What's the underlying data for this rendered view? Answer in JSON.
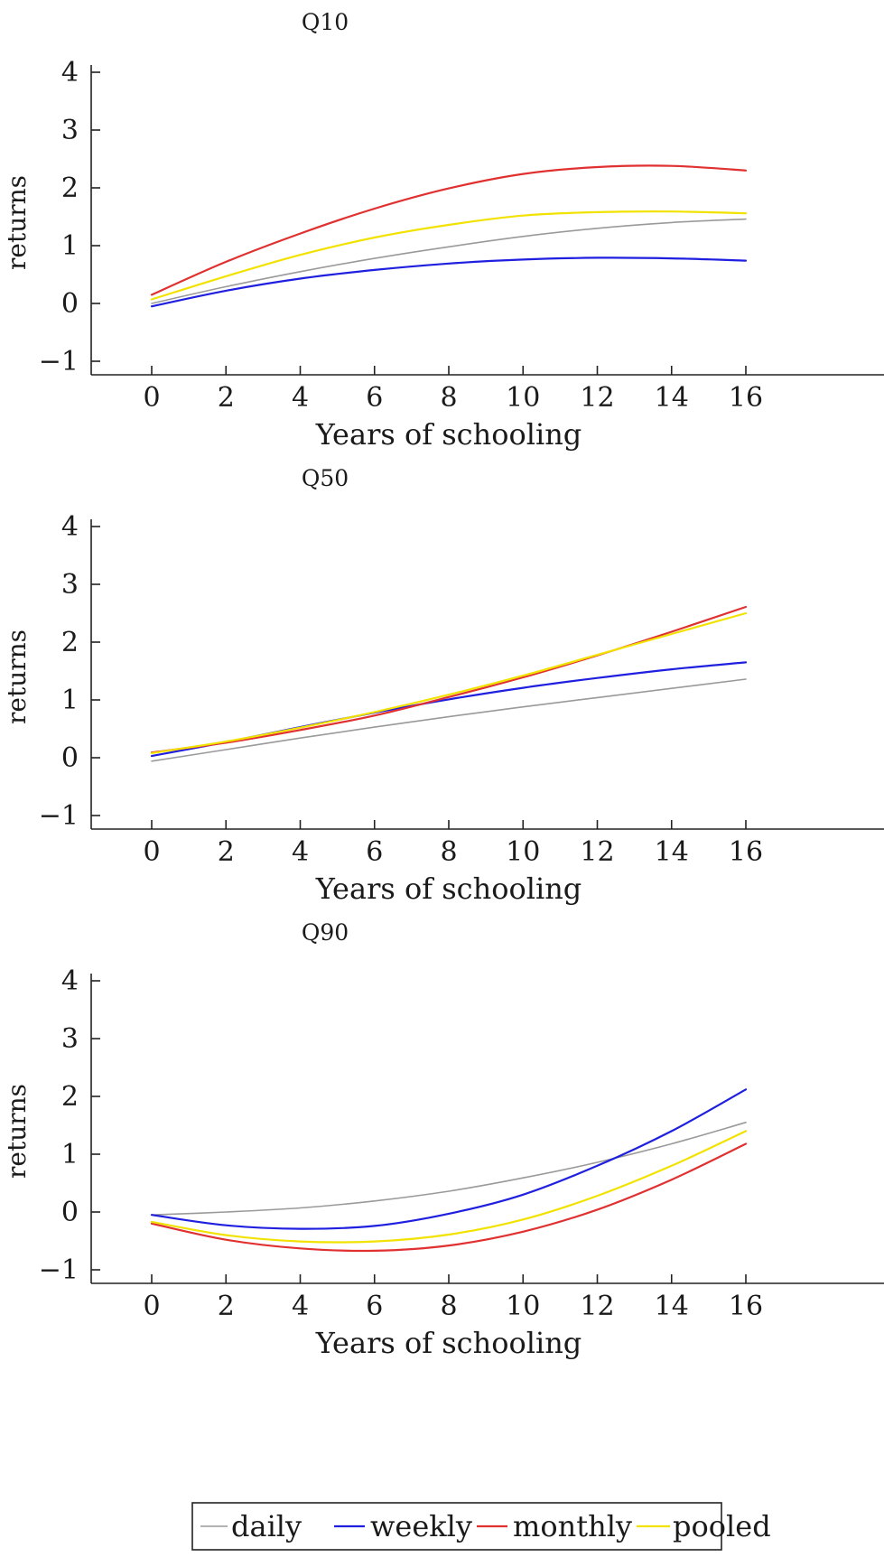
{
  "chart_data": [
    {
      "type": "line",
      "title": "Q10",
      "xlabel": "Years of schooling",
      "ylabel": "returns",
      "xlim": [
        -1.6,
        17.6
      ],
      "ylim": [
        -1.2,
        4.1
      ],
      "xticks": [
        0,
        2,
        4,
        6,
        8,
        10,
        12,
        14,
        16
      ],
      "yticks": [
        -1,
        0,
        1,
        2,
        3,
        4
      ],
      "x": [
        0,
        2,
        4,
        6,
        8,
        10,
        12,
        14,
        16
      ],
      "series": [
        {
          "name": "daily",
          "color": "#9a9a9a",
          "values": [
            0.0,
            0.29,
            0.55,
            0.78,
            0.98,
            1.16,
            1.3,
            1.4,
            1.46
          ]
        },
        {
          "name": "weekly",
          "color": "#1f1fe0",
          "values": [
            -0.05,
            0.22,
            0.43,
            0.58,
            0.69,
            0.76,
            0.79,
            0.78,
            0.74
          ]
        },
        {
          "name": "monthly",
          "color": "#e03030",
          "values": [
            0.15,
            0.72,
            1.21,
            1.64,
            1.99,
            2.24,
            2.36,
            2.38,
            2.3
          ]
        },
        {
          "name": "pooled",
          "color": "#f2e200",
          "values": [
            0.07,
            0.47,
            0.84,
            1.14,
            1.36,
            1.52,
            1.58,
            1.59,
            1.56
          ]
        }
      ]
    },
    {
      "type": "line",
      "title": "Q50",
      "xlabel": "Years of schooling",
      "ylabel": "returns",
      "xlim": [
        -1.6,
        17.6
      ],
      "ylim": [
        -1.2,
        4.1
      ],
      "xticks": [
        0,
        2,
        4,
        6,
        8,
        10,
        12,
        14,
        16
      ],
      "yticks": [
        -1,
        0,
        1,
        2,
        3,
        4
      ],
      "x": [
        0,
        2,
        4,
        6,
        8,
        10,
        12,
        14,
        16
      ],
      "series": [
        {
          "name": "daily",
          "color": "#9a9a9a",
          "values": [
            -0.06,
            0.14,
            0.34,
            0.53,
            0.71,
            0.88,
            1.04,
            1.2,
            1.36
          ]
        },
        {
          "name": "weekly",
          "color": "#1f1fe0",
          "values": [
            0.03,
            0.27,
            0.53,
            0.78,
            1.01,
            1.21,
            1.38,
            1.53,
            1.65
          ]
        },
        {
          "name": "monthly",
          "color": "#e03030",
          "values": [
            0.09,
            0.26,
            0.48,
            0.73,
            1.05,
            1.39,
            1.77,
            2.18,
            2.61
          ]
        },
        {
          "name": "pooled",
          "color": "#f2e200",
          "values": [
            0.08,
            0.28,
            0.52,
            0.79,
            1.09,
            1.42,
            1.78,
            2.14,
            2.5
          ]
        }
      ]
    },
    {
      "type": "line",
      "title": "Q90",
      "xlabel": "Years of schooling",
      "ylabel": "returns",
      "xlim": [
        -1.6,
        17.6
      ],
      "ylim": [
        -1.2,
        4.1
      ],
      "xticks": [
        0,
        2,
        4,
        6,
        8,
        10,
        12,
        14,
        16
      ],
      "yticks": [
        -1,
        0,
        1,
        2,
        3,
        4
      ],
      "x": [
        0,
        2,
        4,
        6,
        8,
        10,
        12,
        14,
        16
      ],
      "series": [
        {
          "name": "daily",
          "color": "#9a9a9a",
          "values": [
            -0.05,
            0.0,
            0.07,
            0.19,
            0.36,
            0.59,
            0.86,
            1.18,
            1.55
          ]
        },
        {
          "name": "weekly",
          "color": "#1f1fe0",
          "values": [
            -0.05,
            -0.23,
            -0.29,
            -0.24,
            -0.03,
            0.3,
            0.8,
            1.4,
            2.12
          ]
        },
        {
          "name": "monthly",
          "color": "#e03030",
          "values": [
            -0.2,
            -0.48,
            -0.63,
            -0.67,
            -0.58,
            -0.34,
            0.04,
            0.56,
            1.18
          ]
        },
        {
          "name": "pooled",
          "color": "#f2e200",
          "values": [
            -0.17,
            -0.4,
            -0.51,
            -0.51,
            -0.39,
            -0.13,
            0.28,
            0.8,
            1.4
          ]
        }
      ]
    }
  ],
  "legend": {
    "placement": "bottom",
    "items": [
      {
        "label": "daily",
        "color": "#9a9a9a"
      },
      {
        "label": "weekly",
        "color": "#1f1fe0"
      },
      {
        "label": "monthly",
        "color": "#e03030"
      },
      {
        "label": "pooled",
        "color": "#f2e200"
      }
    ]
  }
}
